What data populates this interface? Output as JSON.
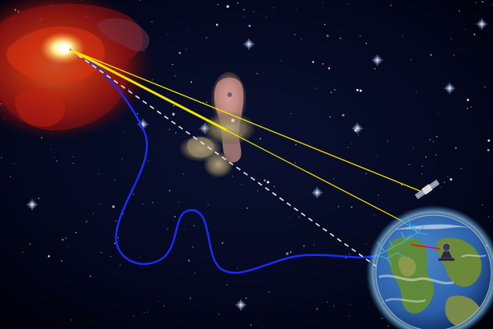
{
  "scene": {
    "colors": {
      "space": "#04081e",
      "space_edge": "#000008",
      "source_core": "#fff2a0",
      "source_glow": "#ff5a10",
      "source_outer": "#8a1010",
      "nebula_pink": "#d88f8a",
      "nebula_green": "#8a8a5a",
      "magnetic_path": "#1a2cff",
      "gamma_ray": "#f5e400",
      "line_of_sight": "#e8e8e8",
      "earth_ocean": "#2a5fa8",
      "earth_land": "#5f8a3a",
      "atmosphere": "#9ad8ff",
      "air_shower": "#3fb0e0",
      "detector_beam": "#e01010"
    },
    "objects": [
      "cosmic-ray-source",
      "intervening-nebula",
      "deflected-charged-particle-path",
      "gamma-ray-paths",
      "line-of-sight",
      "orbiting-satellite",
      "earth",
      "atmospheric-air-shower",
      "ground-telescope"
    ]
  }
}
